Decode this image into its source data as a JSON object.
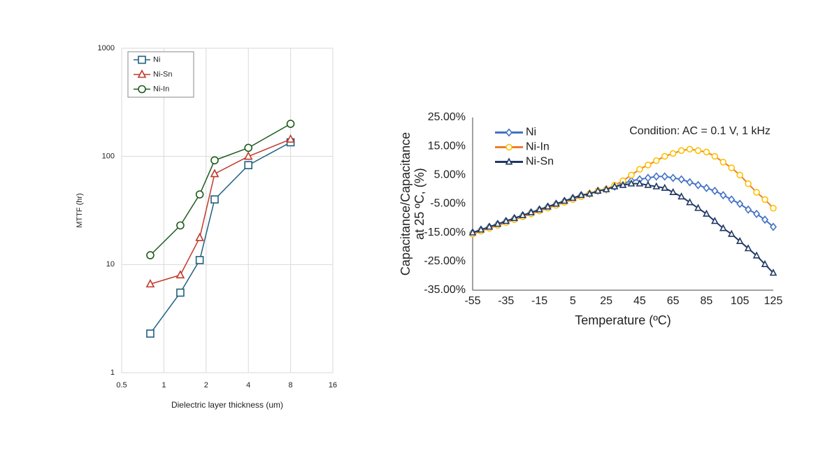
{
  "chart_data": [
    {
      "type": "line",
      "xlabel": "Dielectric layer thickness (um)",
      "ylabel": "MTTF (hr)",
      "x": [
        0.8,
        1.31,
        1.8,
        2.3,
        4,
        8
      ],
      "xscale": "log",
      "yscale": "log",
      "xlim": [
        0.5,
        16
      ],
      "xticks": [
        0.5,
        1,
        2,
        4,
        8,
        16
      ],
      "ylim": [
        1,
        1000
      ],
      "yticks": [
        1,
        10,
        100,
        1000
      ],
      "grid": true,
      "legend": "upper left",
      "series": [
        {
          "name": "Ni",
          "color": "#1f5f80",
          "marker": "square",
          "values": [
            2.3,
            5.5,
            11,
            40,
            83,
            135
          ]
        },
        {
          "name": "Ni-Sn",
          "color": "#c0392b",
          "marker": "triangle",
          "values": [
            6.6,
            8,
            17.7,
            69,
            100,
            144
          ]
        },
        {
          "name": "Ni-In",
          "color": "#1e5c1e",
          "marker": "circle",
          "values": [
            12.2,
            23,
            44.5,
            92,
            120,
            200
          ]
        }
      ]
    },
    {
      "type": "line",
      "xlabel": "Temperature (ºC)",
      "ylabel": [
        "Capacitance/Capacitance",
        "at 25 ºC, (%)"
      ],
      "annotation": "Condition: AC = 0.1 V, 1 kHz",
      "x": [
        -55,
        -50,
        -45,
        -40,
        -35,
        -30,
        -25,
        -20,
        -15,
        -10,
        -5,
        0,
        5,
        10,
        15,
        20,
        25,
        30,
        35,
        40,
        45,
        50,
        55,
        60,
        65,
        70,
        75,
        80,
        85,
        90,
        95,
        100,
        105,
        110,
        115,
        120,
        125
      ],
      "xscale": "linear",
      "yscale": "linear",
      "xlim": [
        -55,
        125
      ],
      "xticks": [
        -55,
        -35,
        -15,
        5,
        25,
        45,
        65,
        85,
        105,
        125
      ],
      "ylim": [
        -35,
        25
      ],
      "yticks": [
        {
          "value": -35,
          "label": "-35.00%"
        },
        {
          "value": -25,
          "label": "-25.00%"
        },
        {
          "value": -15,
          "label": "-15.00%"
        },
        {
          "value": -5,
          "label": "-5.00%"
        },
        {
          "value": 5,
          "label": "5.00%"
        },
        {
          "value": 15,
          "label": "15.00%"
        },
        {
          "value": 25,
          "label": "25.00%"
        }
      ],
      "grid": false,
      "legend": "upper left",
      "series": [
        {
          "name": "Ni",
          "color": "#4472c4",
          "marker": "diamond",
          "values": [
            -15,
            -14,
            -13,
            -12,
            -11,
            -10,
            -9,
            -8,
            -7,
            -6,
            -5,
            -4,
            -3,
            -2,
            -1.5,
            -0.5,
            0,
            1,
            2,
            3,
            3.5,
            4,
            4.5,
            4.5,
            4,
            3.5,
            2.5,
            1.5,
            0.5,
            -0.5,
            -2,
            -3.5,
            -5,
            -7,
            -8.5,
            -10.5,
            -13
          ]
        },
        {
          "name": "Ni-In",
          "color": "#ed7d31",
          "marker_color": "#ffc000",
          "marker": "circle",
          "values": [
            -15.5,
            -14.5,
            -13.5,
            -12.5,
            -11.5,
            -10.5,
            -9.5,
            -8.5,
            -7.5,
            -6.5,
            -5.5,
            -4.5,
            -3.5,
            -2.5,
            -1.5,
            -0.5,
            0,
            1.5,
            3,
            5,
            7,
            8.5,
            10,
            11.5,
            12.5,
            13.5,
            14,
            13.5,
            13,
            11.5,
            9.5,
            7.5,
            5,
            2,
            -1,
            -3.5,
            -6.5
          ]
        },
        {
          "name": "Ni-Sn",
          "color": "#203864",
          "marker": "triangle",
          "values": [
            -15,
            -14,
            -13,
            -12,
            -11,
            -10,
            -9,
            -8,
            -7,
            -6,
            -5,
            -4,
            -3,
            -2,
            -1.5,
            -0.5,
            0,
            1,
            1.5,
            2,
            2,
            1.5,
            1,
            0.5,
            -1,
            -2.5,
            -4.5,
            -6.5,
            -8.5,
            -11,
            -13.5,
            -15.5,
            -18,
            -20.5,
            -23,
            -26,
            -29
          ]
        }
      ]
    }
  ]
}
